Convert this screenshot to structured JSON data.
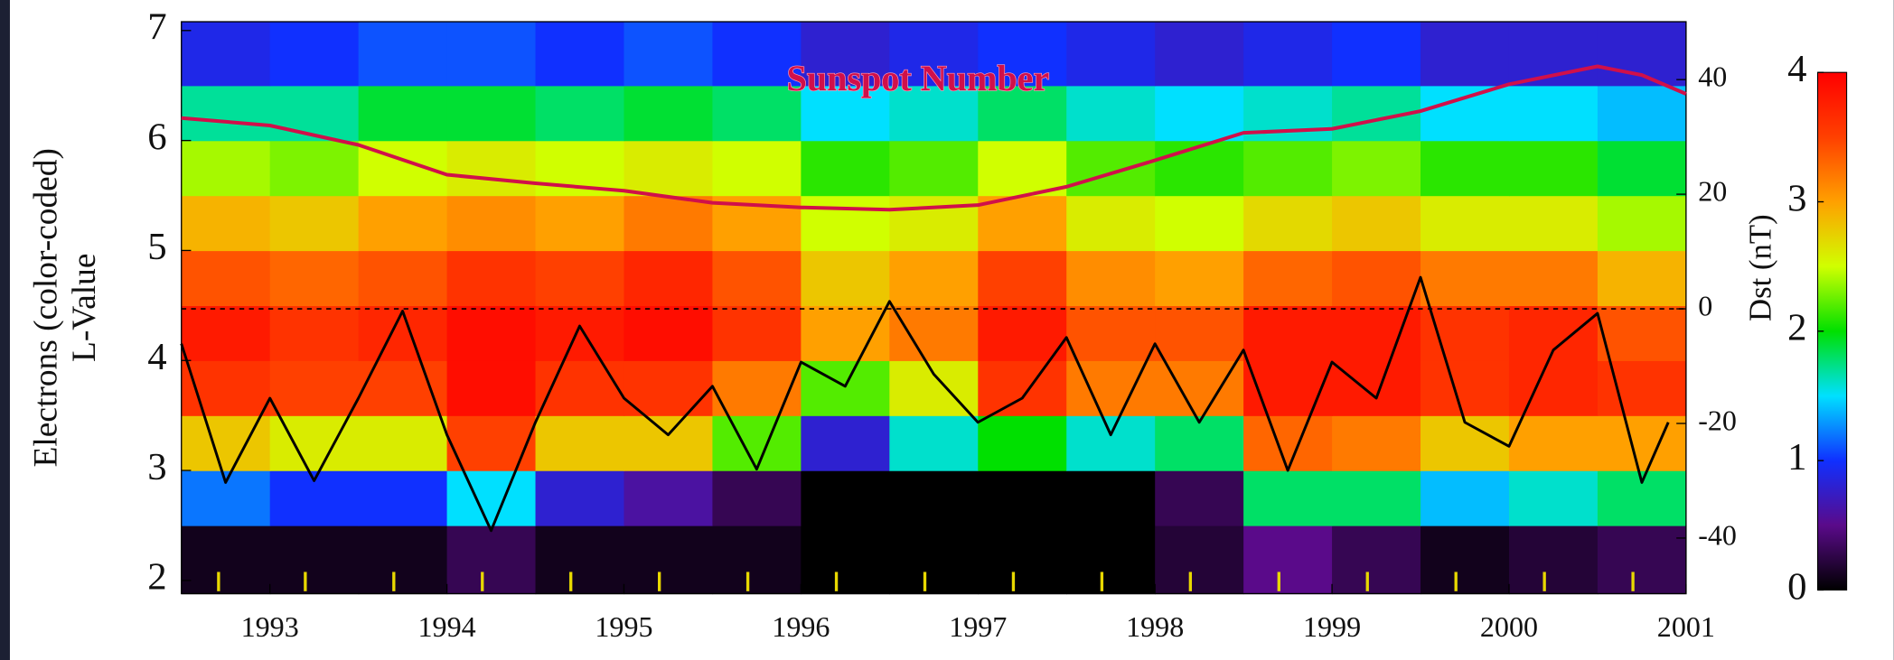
{
  "chart_data": {
    "type": "heatmap",
    "x_edges": [
      1992.5,
      1993,
      1993.5,
      1994,
      1994.5,
      1995,
      1995.5,
      1996,
      1996.5,
      1997,
      1997.5,
      1998,
      1998.5,
      1999,
      1999.5,
      2000,
      2000.5,
      2001
    ],
    "y_edges": [
      1.88,
      2.5,
      3,
      3.5,
      4,
      4.5,
      5,
      5.5,
      6,
      6.5,
      7.08
    ],
    "z": [
      [
        0.1,
        0.1,
        0.1,
        0.3,
        0.1,
        0.1,
        0.1,
        0,
        0,
        0,
        0,
        0.2,
        0.5,
        0.3,
        0.1,
        0.2,
        0.3
      ],
      [
        1.2,
        1.0,
        1.0,
        1.5,
        0.8,
        0.6,
        0.3,
        0,
        0,
        0,
        0,
        0.3,
        1.8,
        1.8,
        1.4,
        1.6,
        1.8
      ],
      [
        2.8,
        2.6,
        2.6,
        3.5,
        2.8,
        2.8,
        2.2,
        0.8,
        1.6,
        2.0,
        1.6,
        1.8,
        3.3,
        3.2,
        2.8,
        3.0,
        3.0
      ],
      [
        3.6,
        3.5,
        3.5,
        3.9,
        3.6,
        3.6,
        3.2,
        2.2,
        2.6,
        3.6,
        3.2,
        3.2,
        3.8,
        3.8,
        3.6,
        3.7,
        3.6
      ],
      [
        3.8,
        3.6,
        3.7,
        3.9,
        3.8,
        3.9,
        3.6,
        3.0,
        3.2,
        3.8,
        3.4,
        3.4,
        3.8,
        3.8,
        3.6,
        3.7,
        3.4
      ],
      [
        3.4,
        3.3,
        3.4,
        3.6,
        3.5,
        3.7,
        3.4,
        2.8,
        3.0,
        3.5,
        3.1,
        3.0,
        3.3,
        3.4,
        3.2,
        3.2,
        2.9
      ],
      [
        2.9,
        2.8,
        3.0,
        3.1,
        3.0,
        3.2,
        3.0,
        2.5,
        2.6,
        3.0,
        2.6,
        2.5,
        2.7,
        2.8,
        2.6,
        2.6,
        2.4
      ],
      [
        2.4,
        2.3,
        2.5,
        2.6,
        2.5,
        2.6,
        2.5,
        2.1,
        2.2,
        2.5,
        2.2,
        2.1,
        2.2,
        2.3,
        2.1,
        2.1,
        1.9
      ],
      [
        1.7,
        1.7,
        1.9,
        1.9,
        1.8,
        1.9,
        1.8,
        1.5,
        1.6,
        1.8,
        1.6,
        1.5,
        1.6,
        1.7,
        1.5,
        1.5,
        1.4
      ],
      [
        0.9,
        1.0,
        1.1,
        1.1,
        1.0,
        1.1,
        1.0,
        0.8,
        0.9,
        1.0,
        0.9,
        0.8,
        0.9,
        1.0,
        0.8,
        0.8,
        0.8
      ]
    ],
    "colorscale": [
      "#000000",
      "#5a0a8a",
      "#1030ff",
      "#00e0ff",
      "#00e000",
      "#d0ff00",
      "#ffa000",
      "#ff4000",
      "#ff0000"
    ],
    "zlim": [
      0,
      4
    ],
    "zticks": [
      0,
      1,
      2,
      3,
      4
    ],
    "xlim": [
      1992.5,
      2001
    ],
    "xticks": [
      1993,
      1994,
      1995,
      1996,
      1997,
      1998,
      1999,
      2000,
      2001
    ],
    "x_markers": [
      1992.71,
      1993.2,
      1993.7,
      1994.2,
      1994.7,
      1995.2,
      1995.7,
      1996.2,
      1996.7,
      1997.2,
      1997.7,
      1998.2,
      1998.7,
      1999.2,
      1999.7,
      2000.2,
      2000.7
    ],
    "x_marker_color": "#e8d800",
    "ylim": [
      1.88,
      7.08
    ],
    "yticks": [
      2,
      3,
      4,
      5,
      6,
      7
    ],
    "y2lim": [
      -49.7,
      50.1
    ],
    "y2ticks": [
      -40,
      -20,
      0,
      20,
      40
    ],
    "y2_reference": 0,
    "ylabel": "L-Value",
    "ylabel2": "Electrons (color-coded)",
    "y2label": "Dst (nT)",
    "series": [
      {
        "name": "Sunspot Number",
        "color": "#d0104a",
        "axis": "y2",
        "x": [
          1992.5,
          1993,
          1993.5,
          1994,
          1994.5,
          1995,
          1995.5,
          1996,
          1996.5,
          1997,
          1997.5,
          1998,
          1998.5,
          1999,
          1999.5,
          2000,
          2000.5,
          2000.75,
          2001
        ],
        "values": [
          33.3,
          32,
          28.6,
          23.4,
          21.9,
          20.6,
          18.5,
          17.7,
          17.3,
          18.1,
          21.3,
          25.9,
          30.7,
          31.4,
          34.5,
          39.2,
          42.3,
          40.8,
          37.5
        ]
      },
      {
        "color": "#000000",
        "axis": "y2",
        "x": [
          1992.5,
          1992.75,
          1993,
          1993.25,
          1993.5,
          1993.75,
          1994,
          1994.25,
          1994.5,
          1994.75,
          1995,
          1995.25,
          1995.5,
          1995.75,
          1996,
          1996.25,
          1996.5,
          1996.75,
          1997,
          1997.25,
          1997.5,
          1997.75,
          1998,
          1998.25,
          1998.5,
          1998.75,
          1999,
          1999.25,
          1999.5,
          1999.75,
          2000,
          2000.25,
          2000.5,
          2000.75,
          2000.9
        ],
        "values": [
          -6.1,
          -30.3,
          -15.6,
          -30,
          -15.6,
          -0.4,
          -22,
          -38.7,
          -19.8,
          -3,
          -15.6,
          -22,
          -13.5,
          -28,
          -9.3,
          -13.5,
          1.3,
          -11.4,
          -19.8,
          -15.6,
          -5,
          -22,
          -6.1,
          -19.8,
          -7.2,
          -28.2,
          -9.3,
          -15.6,
          5.5,
          -19.8,
          -24,
          -7.2,
          -0.8,
          -30.3,
          -19.8
        ]
      }
    ]
  }
}
